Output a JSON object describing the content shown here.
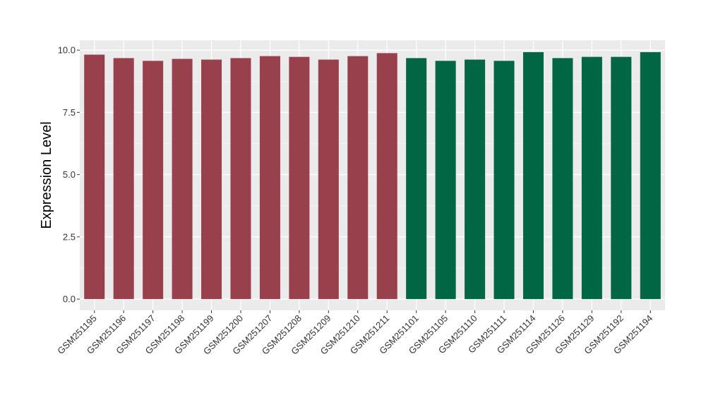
{
  "chart_data": {
    "type": "bar",
    "title": "",
    "xlabel": "",
    "ylabel": "Expression Level",
    "ylim": [
      -0.45,
      10.4
    ],
    "yticks": [
      0.0,
      2.5,
      5.0,
      7.5,
      10.0
    ],
    "ytick_labels": [
      "0.0",
      "2.5",
      "5.0",
      "7.5",
      "10.0"
    ],
    "grid": true,
    "legend": "none",
    "background_color": "#ebebeb",
    "categories": [
      "GSM251195",
      "GSM251196",
      "GSM251197",
      "GSM251198",
      "GSM251199",
      "GSM251200",
      "GSM251207",
      "GSM251208",
      "GSM251209",
      "GSM251210",
      "GSM251211",
      "GSM251101",
      "GSM251105",
      "GSM251110",
      "GSM251111",
      "GSM251114",
      "GSM251126",
      "GSM251129",
      "GSM251192",
      "GSM251194"
    ],
    "values": [
      9.82,
      9.68,
      9.57,
      9.65,
      9.62,
      9.68,
      9.76,
      9.73,
      9.62,
      9.76,
      9.88,
      9.68,
      9.57,
      9.62,
      9.57,
      9.92,
      9.68,
      9.73,
      9.73,
      9.92
    ],
    "bar_colors": [
      "#99404d",
      "#99404d",
      "#99404d",
      "#99404d",
      "#99404d",
      "#99404d",
      "#99404d",
      "#99404d",
      "#99404d",
      "#99404d",
      "#99404d",
      "#006644",
      "#006644",
      "#006644",
      "#006644",
      "#006644",
      "#006644",
      "#006644",
      "#006644",
      "#006644"
    ]
  }
}
